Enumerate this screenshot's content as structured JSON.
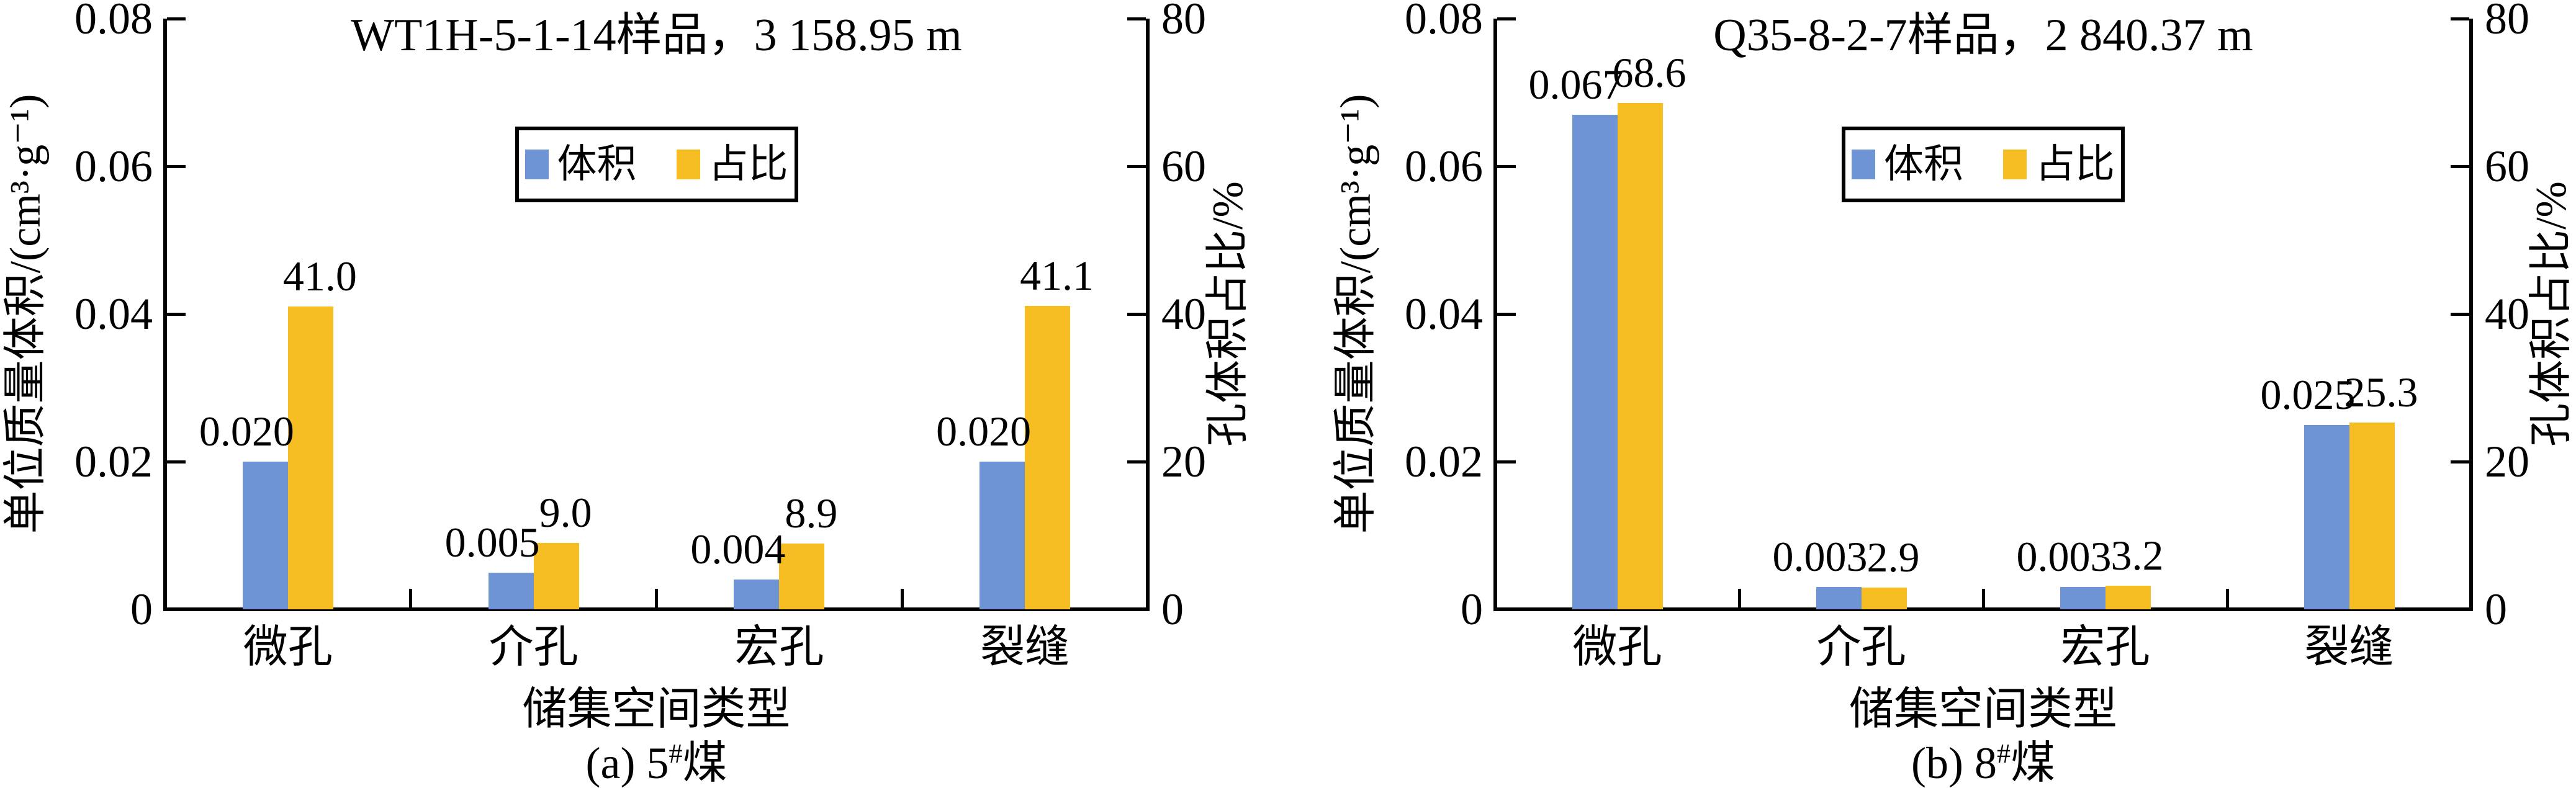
{
  "figure": {
    "background": "#ffffff",
    "series_colors": {
      "volume": "#6F94D6",
      "ratio": "#F7BE24"
    },
    "legend_labels": {
      "volume": "体积",
      "ratio": "占比"
    }
  },
  "chart_data": [
    {
      "type": "bar",
      "title": "WT1H-5-1-14样品，3 158.95 m",
      "categories": [
        "微孔",
        "介孔",
        "宏孔",
        "裂缝"
      ],
      "series": [
        {
          "name": "体积",
          "axis": "left",
          "color": "#6F94D6",
          "values": [
            0.02,
            0.005,
            0.004,
            0.02
          ],
          "labels": [
            "0.020",
            "0.005",
            "0.004",
            "0.020"
          ]
        },
        {
          "name": "占比",
          "axis": "right",
          "color": "#F7BE24",
          "values": [
            41.0,
            9.0,
            8.9,
            41.1
          ],
          "labels": [
            "41.0",
            "9.0",
            "8.9",
            "41.1"
          ]
        }
      ],
      "xlabel": "储集空间类型",
      "ylabel_left": "单位质量体积/(cm³·g⁻¹)",
      "ylabel_right": "孔体积占比/%",
      "yticks_left": [
        "0",
        "0.02",
        "0.04",
        "0.06",
        "0.08"
      ],
      "yticks_right": [
        "0",
        "20",
        "40",
        "60",
        "80"
      ],
      "ylim_left": [
        0,
        0.08
      ],
      "ylim_right": [
        0,
        80
      ],
      "grid": false,
      "legend_position": "upper-center-inside",
      "caption": {
        "prefix": "(a) 5",
        "sup": "#",
        "suffix": "煤"
      }
    },
    {
      "type": "bar",
      "title": "Q35-8-2-7样品，2 840.37 m",
      "categories": [
        "微孔",
        "介孔",
        "宏孔",
        "裂缝"
      ],
      "series": [
        {
          "name": "体积",
          "axis": "left",
          "color": "#6F94D6",
          "values": [
            0.067,
            0.003,
            0.003,
            0.025
          ],
          "labels": [
            "0.067",
            "0.003",
            "0.003",
            "0.025"
          ]
        },
        {
          "name": "占比",
          "axis": "right",
          "color": "#F7BE24",
          "values": [
            68.6,
            2.9,
            3.2,
            25.3
          ],
          "labels": [
            "68.6",
            "2.9",
            "3.2",
            "25.3"
          ]
        }
      ],
      "xlabel": "储集空间类型",
      "ylabel_left": "单位质量体积/(cm³·g⁻¹)",
      "ylabel_right": "孔体积占比/%",
      "yticks_left": [
        "0",
        "0.02",
        "0.04",
        "0.06",
        "0.08"
      ],
      "yticks_right": [
        "0",
        "20",
        "40",
        "60",
        "80"
      ],
      "ylim_left": [
        0,
        0.08
      ],
      "ylim_right": [
        0,
        80
      ],
      "grid": false,
      "legend_position": "upper-center-inside",
      "caption": {
        "prefix": "(b) 8",
        "sup": "#",
        "suffix": "煤"
      }
    }
  ]
}
